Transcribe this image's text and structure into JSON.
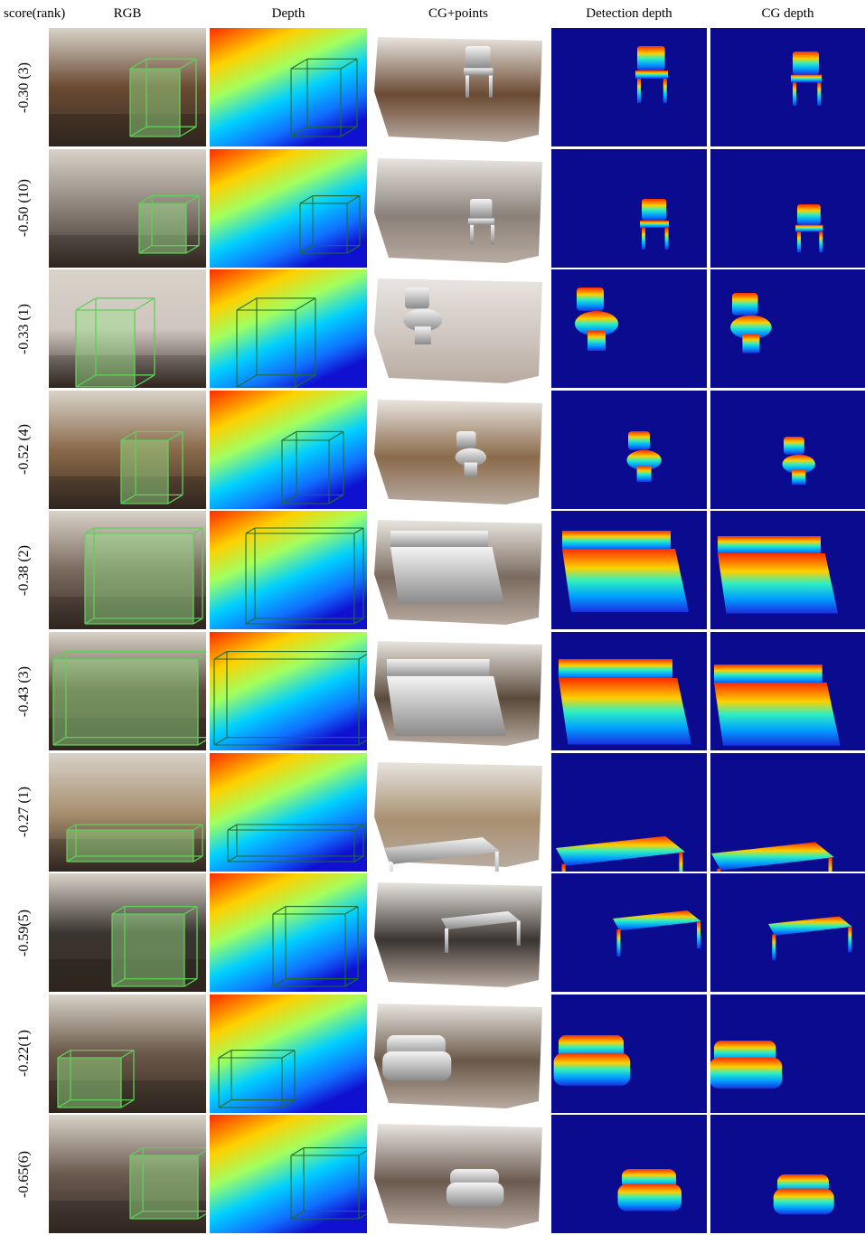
{
  "headers": {
    "score": "score(rank)",
    "rgb": "RGB",
    "depth": "Depth",
    "cg_points": "CG+points",
    "detection_depth": "Detection depth",
    "cg_depth": "CG depth"
  },
  "rows": [
    {
      "label": "-0.30 (3)",
      "object": "chair",
      "rgb_tone": "#6a4a32"
    },
    {
      "label": "-0.50 (10)",
      "object": "chair",
      "rgb_tone": "#8a8078"
    },
    {
      "label": "-0.33 (1)",
      "object": "toilet",
      "rgb_tone": "#cfc6bf"
    },
    {
      "label": "-0.52 (4)",
      "object": "toilet",
      "rgb_tone": "#8a6a4a"
    },
    {
      "label": "-0.38 (2)",
      "object": "bed",
      "rgb_tone": "#7a6a5e"
    },
    {
      "label": "-0.43 (3)",
      "object": "bed",
      "rgb_tone": "#5a4a3a"
    },
    {
      "label": "-0.27 (1)",
      "object": "table",
      "rgb_tone": "#a89070"
    },
    {
      "label": "-0.59(5)",
      "object": "table",
      "rgb_tone": "#3a3530"
    },
    {
      "label": "-0.22(1)",
      "object": "sofa",
      "rgb_tone": "#6a5848"
    },
    {
      "label": "-0.65(6)",
      "object": "sofa",
      "rgb_tone": "#6a5a50"
    }
  ]
}
